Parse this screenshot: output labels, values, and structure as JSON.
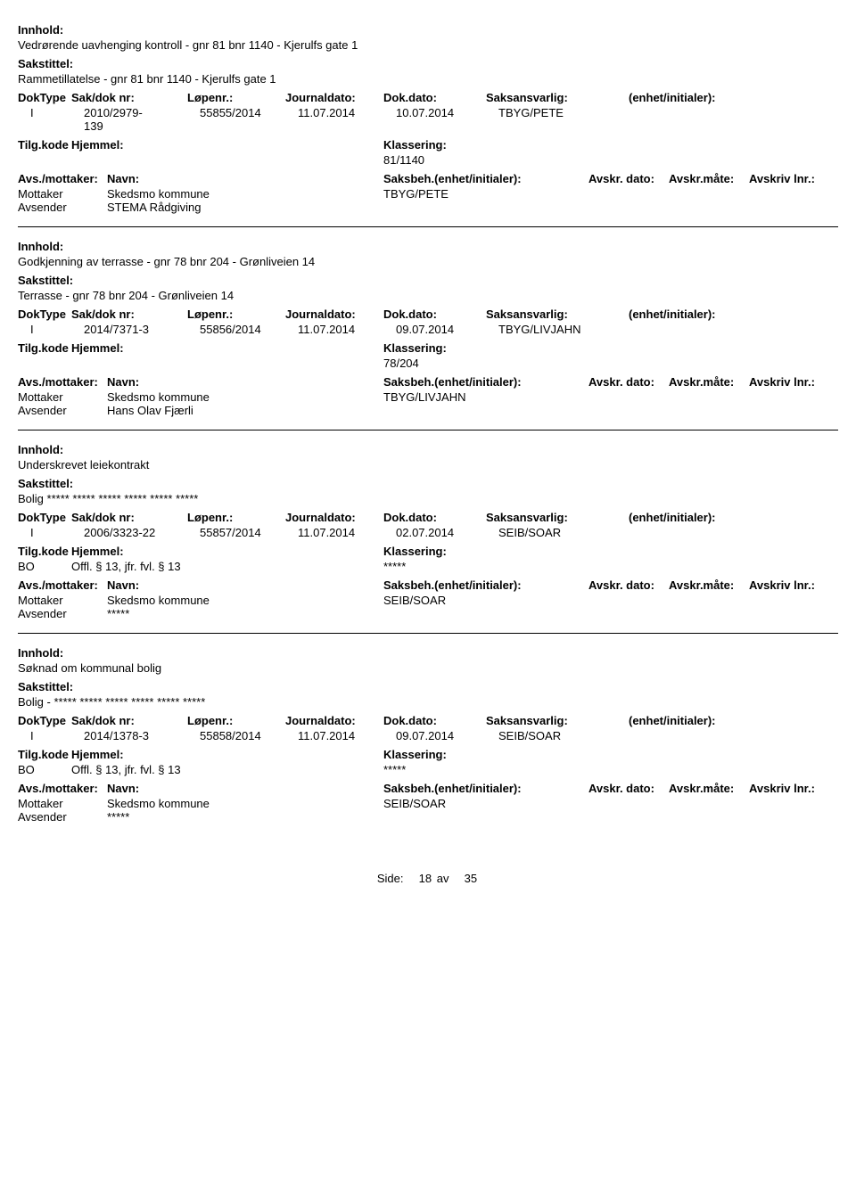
{
  "labels": {
    "innhold": "Innhold:",
    "sakstittel": "Sakstittel:",
    "doktype": "DokType",
    "sakdok": "Sak/dok nr:",
    "lopenr": "Løpenr.:",
    "journaldato": "Journaldato:",
    "dokdato": "Dok.dato:",
    "saksansvarlig": "Saksansvarlig:",
    "enhet": "(enhet/initialer):",
    "tilgkode": "Tilg.kode",
    "hjemmel": "Hjemmel:",
    "klassering": "Klassering:",
    "avsmottaker": "Avs./mottaker:",
    "navn": "Navn:",
    "saksbeh": "Saksbeh.(enhet/initialer):",
    "avskrdato": "Avskr. dato:",
    "avskrmate": "Avskr.måte:",
    "avskrlnr": "Avskriv lnr.:",
    "mottaker": "Mottaker",
    "avsender": "Avsender"
  },
  "records": [
    {
      "innhold": "Vedrørende uavhenging kontroll  - gnr 81 bnr 1140 - Kjerulfs gate 1",
      "sakstittel": "Rammetillatelse - gnr 81 bnr 1140 - Kjerulfs gate 1",
      "doktype": "I",
      "sakdoknr_1": "2010/2979-",
      "sakdoknr_2": "139",
      "lopenr": "55855/2014",
      "journaldato": "11.07.2014",
      "dokdato": "10.07.2014",
      "saksansvarlig": "TBYG/PETE",
      "enhet": "",
      "tilgkode": "",
      "hjemmel": "",
      "klassering": "81/1140",
      "mottaker_navn": "Skedsmo kommune",
      "saksbeh": "TBYG/PETE",
      "avsender_navn": "STEMA Rådgiving"
    },
    {
      "innhold": "Godkjenning av terrasse - gnr 78 bnr 204 - Grønliveien 14",
      "sakstittel": "Terrasse - gnr 78 bnr 204 - Grønliveien 14",
      "doktype": "I",
      "sakdoknr_1": "2014/7371-3",
      "sakdoknr_2": "",
      "lopenr": "55856/2014",
      "journaldato": "11.07.2014",
      "dokdato": "09.07.2014",
      "saksansvarlig": "TBYG/LIVJAHN",
      "enhet": "",
      "tilgkode": "",
      "hjemmel": "",
      "klassering": "78/204",
      "mottaker_navn": "Skedsmo kommune",
      "saksbeh": "TBYG/LIVJAHN",
      "avsender_navn": "Hans Olav Fjærli"
    },
    {
      "innhold": "Underskrevet leiekontrakt",
      "sakstittel": "Bolig ***** ***** ***** ***** ***** *****",
      "doktype": "I",
      "sakdoknr_1": "2006/3323-22",
      "sakdoknr_2": "",
      "lopenr": "55857/2014",
      "journaldato": "11.07.2014",
      "dokdato": "02.07.2014",
      "saksansvarlig": "SEIB/SOAR",
      "enhet": "",
      "tilgkode": "BO",
      "hjemmel": "Offl. § 13, jfr. fvl. § 13",
      "klassering": "*****",
      "mottaker_navn": "Skedsmo kommune",
      "saksbeh": "SEIB/SOAR",
      "avsender_navn": "*****"
    },
    {
      "innhold": "Søknad om kommunal bolig",
      "sakstittel": "Bolig - ***** ***** ***** ***** ***** *****",
      "doktype": "I",
      "sakdoknr_1": "2014/1378-3",
      "sakdoknr_2": "",
      "lopenr": "55858/2014",
      "journaldato": "11.07.2014",
      "dokdato": "09.07.2014",
      "saksansvarlig": "SEIB/SOAR",
      "enhet": "",
      "tilgkode": "BO",
      "hjemmel": "Offl. § 13, jfr. fvl. § 13",
      "klassering": "*****",
      "mottaker_navn": "Skedsmo kommune",
      "saksbeh": "SEIB/SOAR",
      "avsender_navn": "*****"
    }
  ],
  "footer": {
    "side": "Side:",
    "page": "18",
    "av": "av",
    "total": "35"
  }
}
